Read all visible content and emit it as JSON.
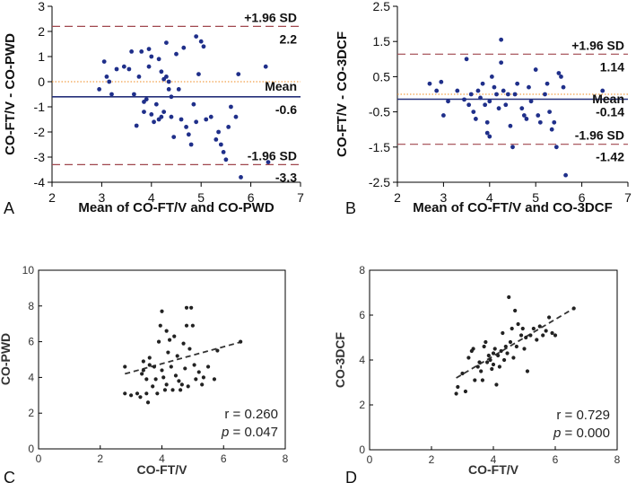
{
  "chart_data": [
    {
      "panel": "A",
      "type": "scatter",
      "subtype": "bland-altman",
      "xlabel": "Mean of CO-FT/V and CO-PWD",
      "ylabel": "CO-FT/V - CO-PWD",
      "xlim": [
        2,
        7
      ],
      "ylim": [
        -4,
        3
      ],
      "xticks": [
        "2",
        "3",
        "4",
        "5",
        "6",
        "7"
      ],
      "yticks": [
        "3",
        "2",
        "1",
        "0",
        "-1",
        "-2",
        "-3",
        "-4"
      ],
      "reference_lines": {
        "upper_loa": {
          "label": "+1.96 SD",
          "value_label": "2.2",
          "value": 2.2
        },
        "mean": {
          "label": "Mean",
          "value_label": "-0.6",
          "value": -0.6
        },
        "lower_loa": {
          "label": "-1.96 SD",
          "value_label": "-3.3",
          "value": -3.3
        }
      },
      "points": [
        [
          2.95,
          -0.3
        ],
        [
          3.05,
          0.8
        ],
        [
          3.1,
          0.2
        ],
        [
          3.15,
          0.0
        ],
        [
          3.2,
          -0.5
        ],
        [
          3.3,
          0.5
        ],
        [
          3.45,
          0.6
        ],
        [
          3.55,
          0.5
        ],
        [
          3.6,
          1.2
        ],
        [
          3.65,
          -0.5
        ],
        [
          3.7,
          -1.75
        ],
        [
          3.75,
          0.2
        ],
        [
          3.8,
          1.2
        ],
        [
          3.85,
          -0.8
        ],
        [
          3.85,
          -1.2
        ],
        [
          3.9,
          -0.7
        ],
        [
          3.95,
          1.3
        ],
        [
          3.95,
          0.6
        ],
        [
          4.0,
          1.0
        ],
        [
          4.0,
          -1.3
        ],
        [
          4.05,
          -1.6
        ],
        [
          4.1,
          -0.9
        ],
        [
          4.15,
          -1.5
        ],
        [
          4.15,
          0.9
        ],
        [
          4.2,
          0.4
        ],
        [
          4.2,
          -1.4
        ],
        [
          4.25,
          0.1
        ],
        [
          4.25,
          -1.2
        ],
        [
          4.3,
          1.55
        ],
        [
          4.3,
          0.2
        ],
        [
          4.35,
          0.0
        ],
        [
          4.35,
          -0.3
        ],
        [
          4.4,
          -0.6
        ],
        [
          4.4,
          -1.4
        ],
        [
          4.45,
          -2.2
        ],
        [
          4.5,
          1.1
        ],
        [
          4.55,
          -0.3
        ],
        [
          4.6,
          -1.5
        ],
        [
          4.65,
          1.35
        ],
        [
          4.7,
          -1.8
        ],
        [
          4.75,
          -2.1
        ],
        [
          4.8,
          -2.5
        ],
        [
          4.85,
          -0.9
        ],
        [
          4.9,
          1.8
        ],
        [
          4.9,
          -1.6
        ],
        [
          4.95,
          0.3
        ],
        [
          5.0,
          1.6
        ],
        [
          5.05,
          1.4
        ],
        [
          5.1,
          -1.5
        ],
        [
          5.2,
          -1.4
        ],
        [
          5.3,
          -2.3
        ],
        [
          5.35,
          -2.0
        ],
        [
          5.4,
          -2.5
        ],
        [
          5.45,
          -2.8
        ],
        [
          5.5,
          -3.1
        ],
        [
          5.55,
          -1.8
        ],
        [
          5.6,
          -1.0
        ],
        [
          5.7,
          -1.4
        ],
        [
          5.75,
          0.3
        ],
        [
          5.8,
          -3.8
        ],
        [
          6.3,
          0.6
        ],
        [
          6.35,
          -3.2
        ]
      ]
    },
    {
      "panel": "B",
      "type": "scatter",
      "subtype": "bland-altman",
      "xlabel": "Mean of CO-FT/V and CO-3DCF",
      "ylabel": "CO-FT/V - CO-3DCF",
      "xlim": [
        2,
        7
      ],
      "ylim": [
        -2.5,
        2.5
      ],
      "xticks": [
        "2",
        "3",
        "4",
        "5",
        "6",
        "7"
      ],
      "yticks": [
        "2.5",
        "1.5",
        "0.5",
        "-0.5",
        "-1.5",
        "-2.5"
      ],
      "reference_lines": {
        "upper_loa": {
          "label": "+1.96 SD",
          "value_label": "1.14",
          "value": 1.14
        },
        "mean": {
          "label": "Mean",
          "value_label": "-0.14",
          "value": -0.14
        },
        "lower_loa": {
          "label": "-1.96 SD",
          "value_label": "-1.42",
          "value": -1.42
        }
      },
      "points": [
        [
          2.7,
          0.3
        ],
        [
          2.85,
          0.1
        ],
        [
          2.95,
          0.35
        ],
        [
          3.0,
          -0.6
        ],
        [
          3.1,
          -0.2
        ],
        [
          3.3,
          0.1
        ],
        [
          3.45,
          -0.15
        ],
        [
          3.5,
          1.0
        ],
        [
          3.55,
          -0.3
        ],
        [
          3.6,
          0.0
        ],
        [
          3.65,
          -0.5
        ],
        [
          3.7,
          -0.7
        ],
        [
          3.75,
          0.1
        ],
        [
          3.8,
          -0.1
        ],
        [
          3.85,
          0.3
        ],
        [
          3.9,
          -0.3
        ],
        [
          3.95,
          -1.1
        ],
        [
          3.95,
          -0.8
        ],
        [
          4.0,
          -0.2
        ],
        [
          4.0,
          -1.2
        ],
        [
          4.05,
          0.5
        ],
        [
          4.1,
          0.2
        ],
        [
          4.15,
          0.0
        ],
        [
          4.2,
          -0.4
        ],
        [
          4.25,
          1.55
        ],
        [
          4.25,
          0.9
        ],
        [
          4.3,
          0.1
        ],
        [
          4.35,
          -0.3
        ],
        [
          4.4,
          0.0
        ],
        [
          4.45,
          -0.9
        ],
        [
          4.5,
          -1.5
        ],
        [
          4.55,
          0.0
        ],
        [
          4.6,
          0.3
        ],
        [
          4.7,
          -0.4
        ],
        [
          4.75,
          -0.6
        ],
        [
          4.8,
          -0.7
        ],
        [
          4.85,
          0.2
        ],
        [
          4.9,
          -0.2
        ],
        [
          5.0,
          0.7
        ],
        [
          5.05,
          -0.6
        ],
        [
          5.1,
          -0.8
        ],
        [
          5.2,
          0.0
        ],
        [
          5.25,
          0.3
        ],
        [
          5.3,
          -0.5
        ],
        [
          5.35,
          -1.0
        ],
        [
          5.4,
          -0.8
        ],
        [
          5.45,
          -1.5
        ],
        [
          5.5,
          0.6
        ],
        [
          5.55,
          0.5
        ],
        [
          5.6,
          0.2
        ],
        [
          5.65,
          -2.3
        ],
        [
          6.45,
          0.1
        ]
      ]
    },
    {
      "panel": "C",
      "type": "scatter",
      "subtype": "correlation",
      "xlabel": "CO-FT/V",
      "ylabel": "CO-PWD",
      "xlim": [
        0,
        8
      ],
      "ylim": [
        0,
        10
      ],
      "xticks": [
        "0",
        "2",
        "4",
        "6",
        "8"
      ],
      "yticks": [
        "0",
        "2",
        "4",
        "6",
        "8",
        "10"
      ],
      "regression": {
        "x": [
          2.8,
          6.6
        ],
        "y": [
          4.2,
          6.0
        ]
      },
      "r_text": "r = 0.260",
      "p_label": "p",
      "p_text": " = 0.047",
      "points": [
        [
          2.8,
          3.1
        ],
        [
          2.8,
          4.6
        ],
        [
          3.0,
          3.0
        ],
        [
          3.2,
          3.1
        ],
        [
          3.3,
          2.9
        ],
        [
          3.35,
          4.2
        ],
        [
          3.4,
          4.4
        ],
        [
          3.4,
          4.9
        ],
        [
          3.5,
          3.1
        ],
        [
          3.5,
          3.9
        ],
        [
          3.55,
          2.6
        ],
        [
          3.6,
          4.7
        ],
        [
          3.6,
          5.1
        ],
        [
          3.7,
          3.5
        ],
        [
          3.75,
          4.6
        ],
        [
          3.8,
          3.9
        ],
        [
          3.85,
          3.1
        ],
        [
          3.9,
          6.0
        ],
        [
          3.95,
          6.9
        ],
        [
          4.0,
          7.7
        ],
        [
          4.0,
          4.4
        ],
        [
          4.05,
          4.0
        ],
        [
          4.1,
          3.3
        ],
        [
          4.15,
          6.6
        ],
        [
          4.15,
          3.6
        ],
        [
          4.2,
          5.4
        ],
        [
          4.25,
          6.1
        ],
        [
          4.3,
          4.6
        ],
        [
          4.35,
          3.3
        ],
        [
          4.4,
          6.3
        ],
        [
          4.45,
          4.1
        ],
        [
          4.5,
          5.2
        ],
        [
          4.55,
          3.8
        ],
        [
          4.6,
          3.3
        ],
        [
          4.65,
          3.6
        ],
        [
          4.7,
          5.9
        ],
        [
          4.75,
          4.5
        ],
        [
          4.8,
          7.9
        ],
        [
          4.8,
          6.9
        ],
        [
          4.85,
          3.5
        ],
        [
          4.9,
          5.6
        ],
        [
          4.95,
          7.9
        ],
        [
          5.0,
          6.9
        ],
        [
          5.05,
          4.7
        ],
        [
          5.1,
          3.9
        ],
        [
          5.2,
          4.3
        ],
        [
          5.3,
          3.6
        ],
        [
          5.35,
          4.0
        ],
        [
          5.5,
          4.6
        ],
        [
          5.7,
          3.9
        ],
        [
          5.8,
          5.5
        ],
        [
          6.55,
          6.0
        ]
      ]
    },
    {
      "panel": "D",
      "type": "scatter",
      "subtype": "correlation",
      "xlabel": "CO-FT/V",
      "ylabel": "CO-3DCF",
      "xlim": [
        0,
        8
      ],
      "ylim": [
        0,
        8
      ],
      "xticks": [
        "0",
        "2",
        "4",
        "6",
        "8"
      ],
      "yticks": [
        "0",
        "2",
        "4",
        "6",
        "8"
      ],
      "regression": {
        "x": [
          2.8,
          6.6
        ],
        "y": [
          3.2,
          6.3
        ]
      },
      "r_text": "r = 0.729",
      "p_label": "p",
      "p_text": " = 0.000",
      "points": [
        [
          2.8,
          2.5
        ],
        [
          2.85,
          2.8
        ],
        [
          3.0,
          3.4
        ],
        [
          3.1,
          2.6
        ],
        [
          3.2,
          4.1
        ],
        [
          3.3,
          4.4
        ],
        [
          3.35,
          4.5
        ],
        [
          3.4,
          3.1
        ],
        [
          3.5,
          3.7
        ],
        [
          3.55,
          3.9
        ],
        [
          3.6,
          3.5
        ],
        [
          3.65,
          3.1
        ],
        [
          3.7,
          4.6
        ],
        [
          3.75,
          4.8
        ],
        [
          3.8,
          3.9
        ],
        [
          3.85,
          4.2
        ],
        [
          3.9,
          4.0
        ],
        [
          3.95,
          3.6
        ],
        [
          4.0,
          4.3
        ],
        [
          4.0,
          3.8
        ],
        [
          4.05,
          4.5
        ],
        [
          4.1,
          2.9
        ],
        [
          4.15,
          4.2
        ],
        [
          4.2,
          3.7
        ],
        [
          4.25,
          4.4
        ],
        [
          4.3,
          5.2
        ],
        [
          4.35,
          4.0
        ],
        [
          4.4,
          4.6
        ],
        [
          4.45,
          4.3
        ],
        [
          4.5,
          6.8
        ],
        [
          4.55,
          4.8
        ],
        [
          4.6,
          5.4
        ],
        [
          4.65,
          4.1
        ],
        [
          4.7,
          6.2
        ],
        [
          4.75,
          4.6
        ],
        [
          4.8,
          5.6
        ],
        [
          4.9,
          5.1
        ],
        [
          4.95,
          5.4
        ],
        [
          5.0,
          4.5
        ],
        [
          5.05,
          5.0
        ],
        [
          5.1,
          3.5
        ],
        [
          5.2,
          5.1
        ],
        [
          5.3,
          5.4
        ],
        [
          5.4,
          4.9
        ],
        [
          5.5,
          5.5
        ],
        [
          5.6,
          5.1
        ],
        [
          5.7,
          5.3
        ],
        [
          5.8,
          5.9
        ],
        [
          5.9,
          5.2
        ],
        [
          6.0,
          5.1
        ],
        [
          6.6,
          6.3
        ]
      ]
    }
  ]
}
